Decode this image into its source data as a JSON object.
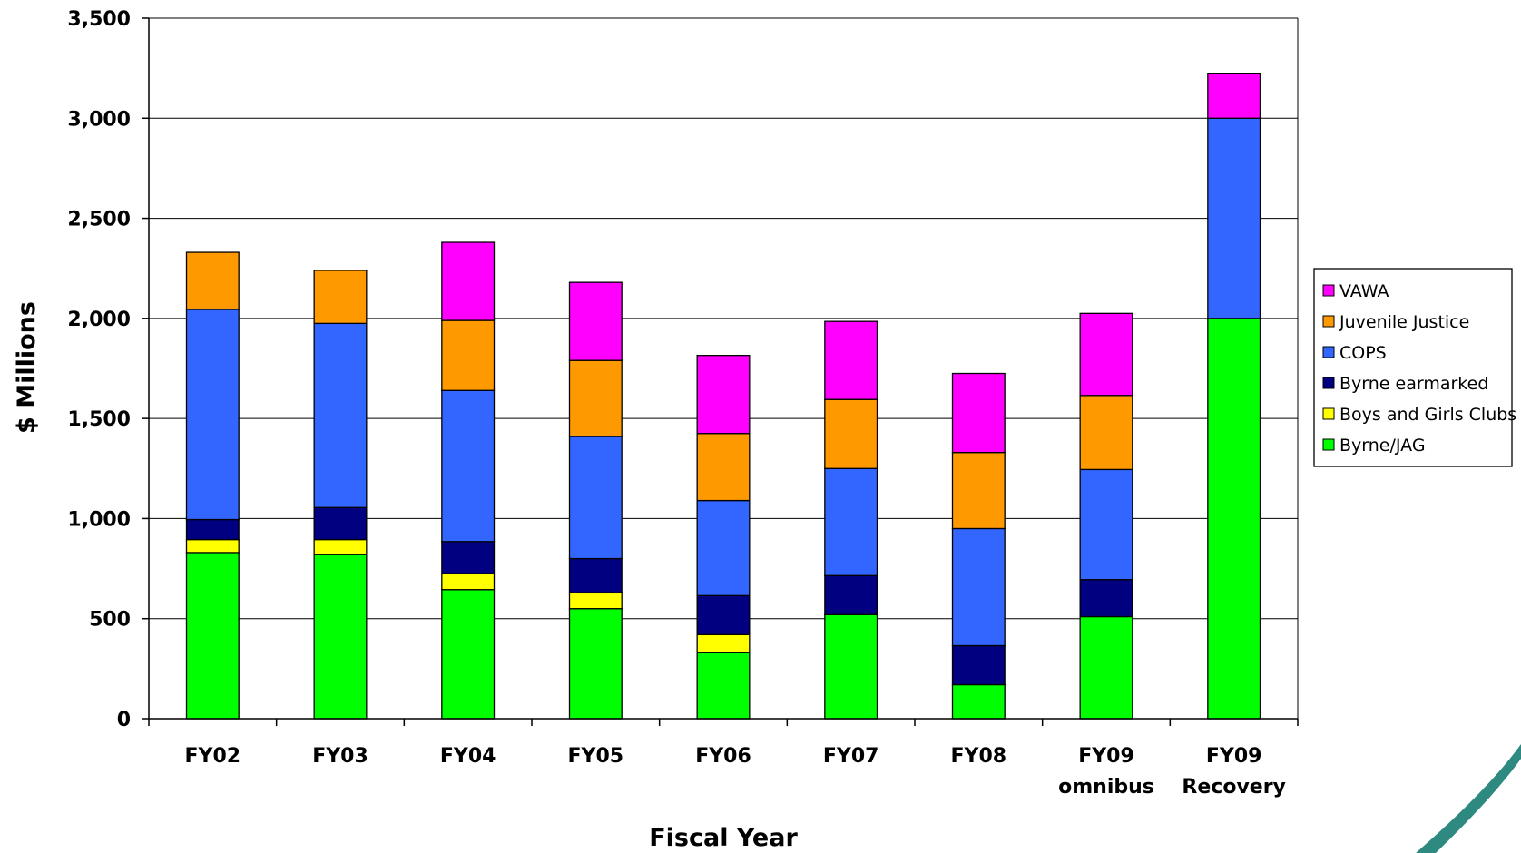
{
  "chart_data": {
    "type": "bar",
    "stacked": true,
    "title": "",
    "xlabel": "Fiscal Year",
    "ylabel": "$ Millions",
    "ylim": [
      0,
      3500
    ],
    "yticks": [
      0,
      500,
      1000,
      1500,
      2000,
      2500,
      3000,
      3500
    ],
    "ytick_labels": [
      "0",
      "500",
      "1,000",
      "1,500",
      "2,000",
      "2,500",
      "3,000",
      "3,500"
    ],
    "grid": true,
    "legend_position": "right",
    "categories": [
      [
        "FY02"
      ],
      [
        "FY03"
      ],
      [
        "FY04"
      ],
      [
        "FY05"
      ],
      [
        "FY06"
      ],
      [
        "FY07"
      ],
      [
        "FY08"
      ],
      [
        "FY09",
        "omnibus"
      ],
      [
        "FY09",
        "Recovery"
      ]
    ],
    "series": [
      {
        "name": "Byrne/JAG",
        "color": "#00ff00",
        "values": [
          830,
          820,
          645,
          550,
          330,
          520,
          170,
          510,
          2000
        ]
      },
      {
        "name": "Boys and Girls Clubs",
        "color": "#ffff00",
        "values": [
          65,
          75,
          80,
          80,
          90,
          0,
          0,
          0,
          0
        ]
      },
      {
        "name": "Byrne earmarked",
        "color": "#000080",
        "values": [
          100,
          160,
          160,
          170,
          195,
          195,
          195,
          185,
          0
        ]
      },
      {
        "name": "COPS",
        "color": "#3366ff",
        "values": [
          1050,
          920,
          755,
          610,
          475,
          535,
          585,
          550,
          1000
        ]
      },
      {
        "name": "Juvenile Justice",
        "color": "#ff9900",
        "values": [
          285,
          265,
          350,
          380,
          335,
          345,
          380,
          370,
          0
        ]
      },
      {
        "name": "VAWA",
        "color": "#ff00ff",
        "values": [
          0,
          0,
          390,
          390,
          390,
          390,
          395,
          410,
          225
        ]
      }
    ]
  }
}
